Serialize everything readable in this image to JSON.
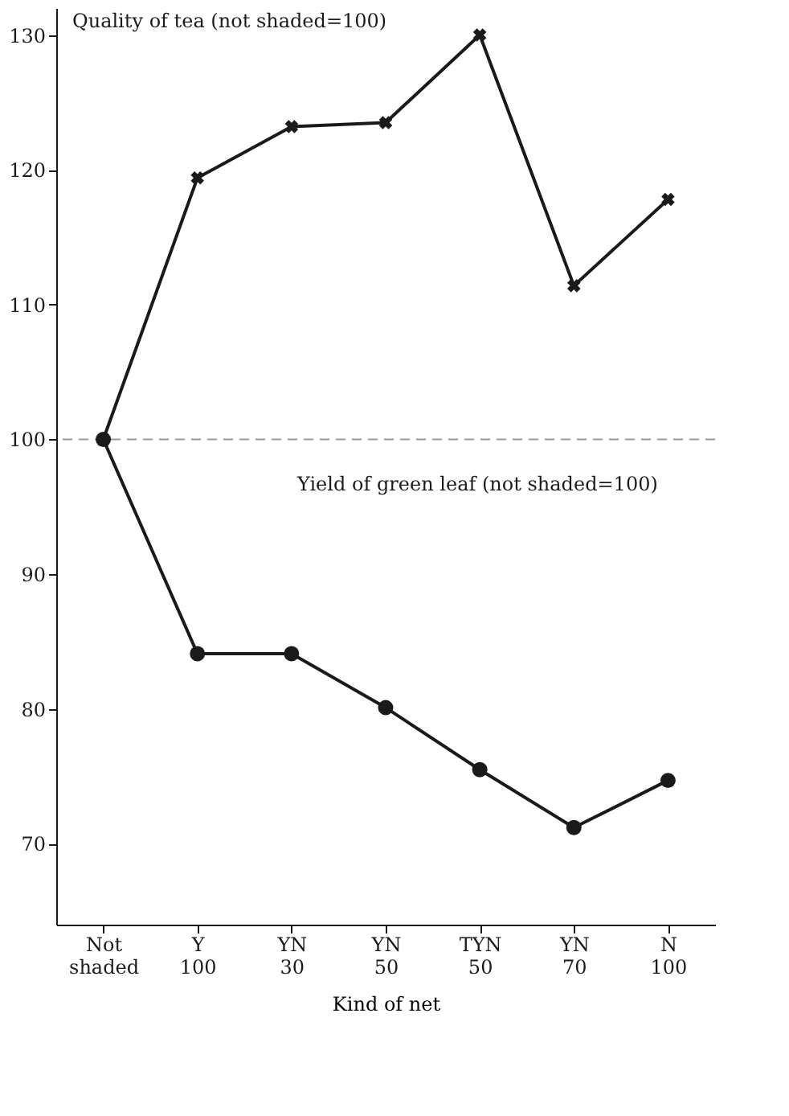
{
  "chart_data": {
    "type": "line",
    "xlabel": "Kind of net",
    "categories": [
      "Not\nshaded",
      "Y\n100",
      "YN\n30",
      "YN\n50",
      "TYN\n50",
      "YN\n70",
      "N\n100"
    ],
    "series": [
      {
        "color": "#1a1a1a",
        "marker": "cross",
        "values": [
          100,
          119.4,
          123.2,
          123.5,
          130,
          111.4,
          117.8
        ]
      },
      {
        "color": "#1a1a1a",
        "marker": "circle",
        "values": [
          100,
          84.1,
          84.1,
          80.1,
          75.5,
          71.2,
          74.7
        ]
      }
    ],
    "ylim": [
      64,
      132
    ],
    "yticks": [
      70,
      80,
      90,
      100,
      110,
      120,
      130
    ],
    "ref_lines": [
      {
        "axis": "y",
        "value": 100,
        "color": "#999999",
        "line_style": "dashed"
      }
    ],
    "annotations": [
      "Quality of tea (not shaded=100)",
      "Yield of green leaf (not shaded=100)"
    ],
    "grid": false,
    "line_style": "solid"
  }
}
